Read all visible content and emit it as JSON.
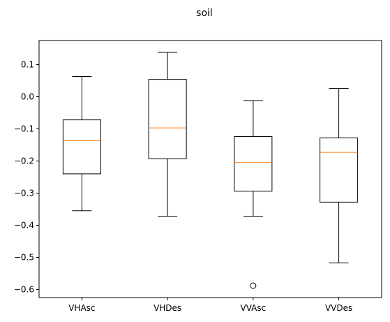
{
  "chart_data": {
    "type": "boxplot",
    "title": "soil",
    "xlabel": "",
    "ylabel": "",
    "categories": [
      "VHAsc",
      "VHDes",
      "VVAsc",
      "VVDes"
    ],
    "ylim": [
      -0.625,
      0.175
    ],
    "yticks": [
      0.1,
      0.0,
      -0.1,
      -0.2,
      -0.3,
      -0.4,
      -0.5,
      -0.6
    ],
    "ytick_labels": [
      "0.1",
      "0.0",
      "−0.1",
      "−0.2",
      "−0.3",
      "−0.4",
      "−0.5",
      "−0.6"
    ],
    "grid": false,
    "boxes": [
      {
        "label": "VHAsc",
        "whisker_low": -0.355,
        "q1": -0.24,
        "median": -0.137,
        "q3": -0.072,
        "whisker_high": 0.063,
        "outliers": []
      },
      {
        "label": "VHDes",
        "whisker_low": -0.372,
        "q1": -0.193,
        "median": -0.097,
        "q3": 0.054,
        "whisker_high": 0.138,
        "outliers": []
      },
      {
        "label": "VVAsc",
        "whisker_low": -0.372,
        "q1": -0.294,
        "median": -0.205,
        "q3": -0.124,
        "whisker_high": -0.012,
        "outliers": [
          -0.588
        ]
      },
      {
        "label": "VVDes",
        "whisker_low": -0.517,
        "q1": -0.328,
        "median": -0.173,
        "q3": -0.128,
        "whisker_high": 0.026,
        "outliers": []
      }
    ],
    "colors": {
      "box": "#000000",
      "median": "#ff7f0e",
      "outlier": "#000000"
    }
  }
}
